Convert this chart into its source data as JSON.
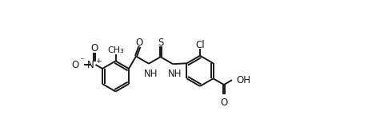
{
  "bg_color": "#ffffff",
  "line_color": "#1a1a1a",
  "line_width": 1.4,
  "font_size": 8.5,
  "figsize": [
    4.8,
    1.54
  ],
  "dpi": 100,
  "xlim": [
    0,
    10
  ],
  "ylim": [
    -2.2,
    2.8
  ]
}
